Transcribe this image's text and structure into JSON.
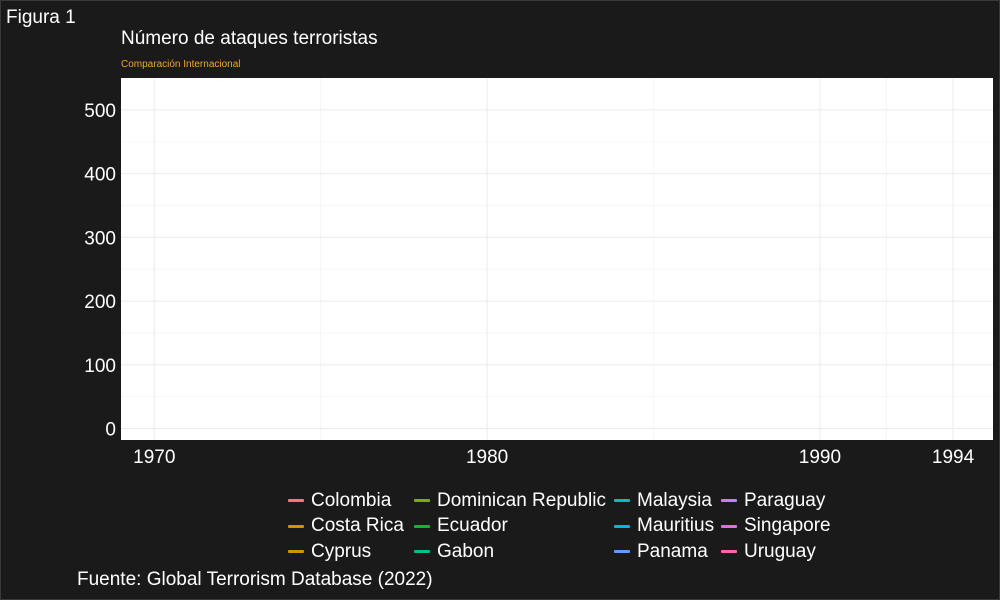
{
  "figure_label": "Figura 1",
  "caption": "Fuente: Global Terrorism Database (2022)",
  "colors": {
    "background": "#1a1a1a",
    "panel": "#ffffff",
    "grid": "#ebebeb",
    "subtitle": "#f5a623"
  },
  "chart_data": {
    "type": "line",
    "title": "Número de ataques terroristas",
    "subtitle": "Comparación Internacional",
    "xlabel": "",
    "ylabel": "",
    "xlim": [
      1969.0,
      1995.2
    ],
    "ylim": [
      -18,
      550
    ],
    "x_ticks": [
      1970,
      1980,
      1990,
      1994
    ],
    "y_ticks": [
      0,
      100,
      200,
      300,
      400,
      500
    ],
    "grid": true,
    "legend_position": "bottom",
    "series": [
      {
        "name": "Colombia",
        "color": "#F8766D",
        "values": []
      },
      {
        "name": "Costa Rica",
        "color": "#E58700",
        "values": []
      },
      {
        "name": "Cyprus",
        "color": "#C99800",
        "values": []
      },
      {
        "name": "Dominican Republic",
        "color": "#7CAE00",
        "values": []
      },
      {
        "name": "Ecuador",
        "color": "#00BA38",
        "values": []
      },
      {
        "name": "Gabon",
        "color": "#00C08B",
        "values": []
      },
      {
        "name": "Malaysia",
        "color": "#00BFC4",
        "values": []
      },
      {
        "name": "Mauritius",
        "color": "#00B4F0",
        "values": []
      },
      {
        "name": "Panama",
        "color": "#619CFF",
        "values": []
      },
      {
        "name": "Paraguay",
        "color": "#C77CFF",
        "values": []
      },
      {
        "name": "Singapore",
        "color": "#F564E3",
        "values": []
      },
      {
        "name": "Uruguay",
        "color": "#FF64B0",
        "values": []
      }
    ]
  }
}
